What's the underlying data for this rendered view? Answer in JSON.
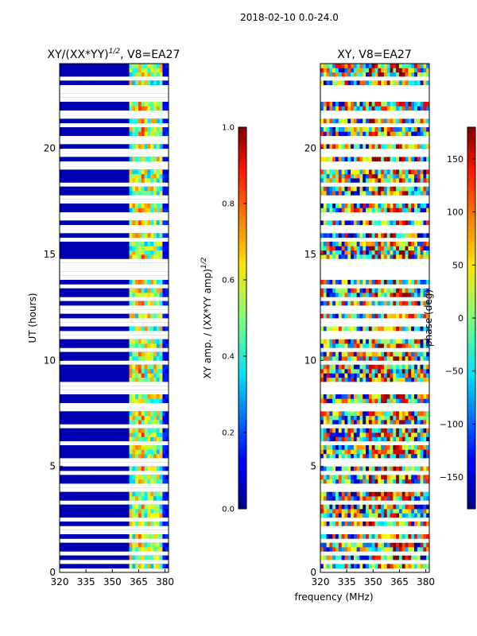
{
  "suptitle": "2018-02-10 0.0-24.0",
  "chart_data": [
    {
      "type": "heatmap",
      "title": "XY/(XX*YY)",
      "title_exponent": "1/2",
      "title_suffix": ", V8=EA27",
      "xlabel": "",
      "ylabel": "UT (hours)",
      "xlim": [
        320,
        382
      ],
      "ylim": [
        0,
        24
      ],
      "xticks": [
        320,
        335,
        350,
        365,
        380
      ],
      "yticks": [
        0,
        5,
        10,
        15,
        20
      ],
      "colorbar": {
        "label": "XY amp. / (XX*YY amp)",
        "label_exponent": "1/2",
        "range": [
          0.0,
          1.0
        ],
        "ticks": [
          "0.0",
          "0.2",
          "0.4",
          "0.6",
          "0.8",
          "1.0"
        ],
        "colormap": "jet"
      },
      "description": "amplitude ratio low (~0.05) below 360 MHz; elevated 0.3-0.8 in 360-378 MHz band; data gaps as white rows"
    },
    {
      "type": "heatmap",
      "title": "XY, V8=EA27",
      "xlabel": "frequency (MHz)",
      "ylabel": "",
      "xlim": [
        320,
        382
      ],
      "ylim": [
        0,
        24
      ],
      "xticks": [
        320,
        335,
        350,
        365,
        380
      ],
      "yticks": [
        0,
        5,
        10,
        15,
        20
      ],
      "colorbar": {
        "label": "phase (deg)",
        "range": [
          -180,
          180
        ],
        "ticks": [
          "150",
          "100",
          "50",
          "0",
          "−50",
          "−100",
          "−150"
        ],
        "tick_values": [
          150,
          100,
          50,
          0,
          -50,
          -100,
          -150
        ],
        "colormap": "jet"
      },
      "description": "phase noisy across band; warmer (positive) values concentrated near 350-370 MHz"
    }
  ],
  "gaps_hours": [
    0.15,
    0.5,
    0.9,
    1.5,
    2.0,
    2.5,
    3.3,
    4.0,
    4.7,
    5.2,
    6.1,
    6.9,
    7.8,
    8.5,
    8.8,
    9.9,
    10.5,
    11.2,
    11.8,
    12.4,
    12.9,
    13.5,
    14.0,
    14.2,
    14.6,
    15.7,
    16.2,
    16.8,
    17.6,
    18.3,
    19.2,
    19.8,
    20.4,
    21.1,
    21.6,
    22.4,
    22.8,
    23.3
  ]
}
